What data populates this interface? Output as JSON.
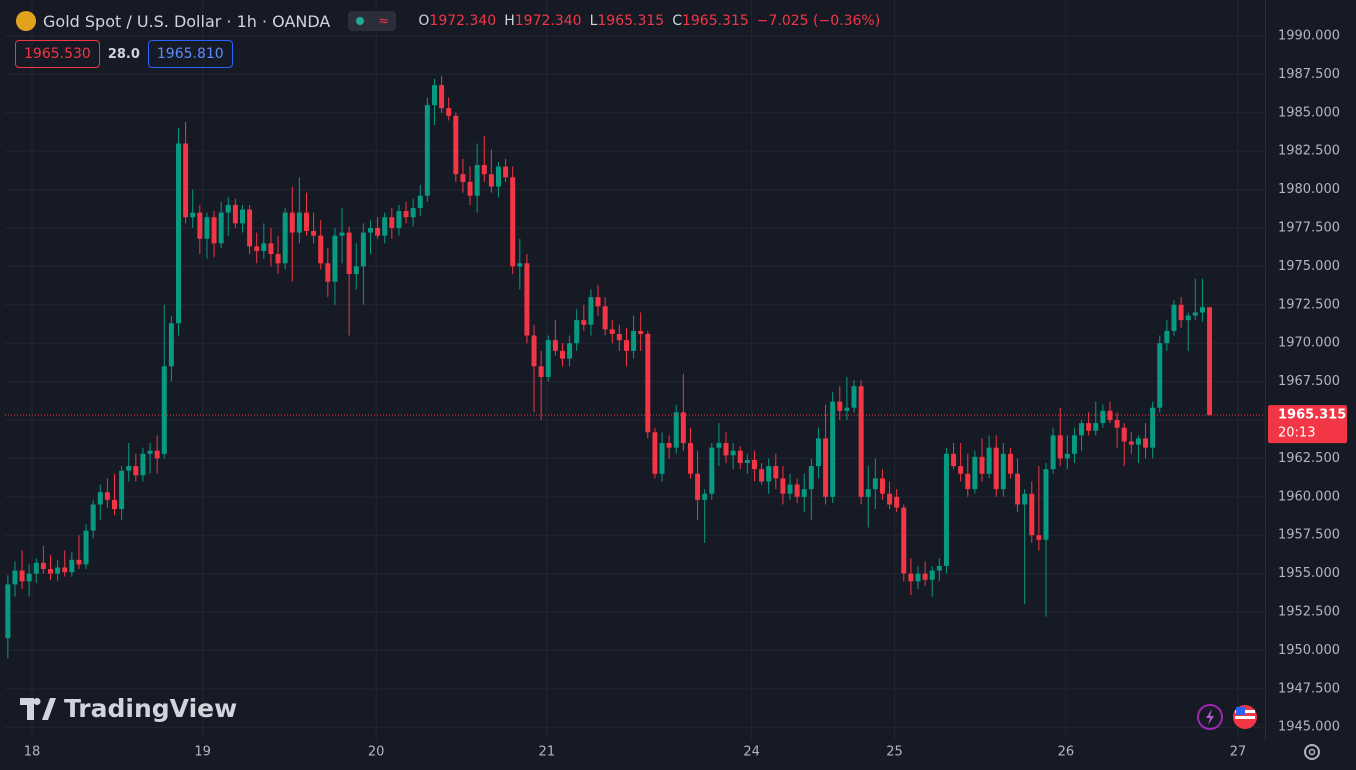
{
  "header": {
    "symbol": "Gold Spot / U.S. Dollar · 1h · OANDA",
    "open_label": "O",
    "open": "1972.340",
    "high_label": "H",
    "high": "1972.340",
    "low_label": "L",
    "low": "1965.315",
    "close_label": "C",
    "close": "1965.315",
    "change": "−7.025 (−0.36%)",
    "bid": "1965.530",
    "spread": "28.0",
    "ask": "1965.810",
    "countdown": "20:13",
    "logo": "TradingView"
  },
  "chart_data": {
    "type": "candlestick",
    "up_color": "#089981",
    "down_color": "#f23645",
    "grid": true,
    "xlim": [
      -0.4,
      176.8
    ],
    "ylim": [
      1944.17,
      1992.34
    ],
    "xticks": [
      {
        "value": 3.4,
        "label": "18"
      },
      {
        "value": 27.4,
        "label": "19"
      },
      {
        "value": 51.8,
        "label": "20"
      },
      {
        "value": 75.8,
        "label": "21"
      },
      {
        "value": 104.6,
        "label": "24"
      },
      {
        "value": 124.7,
        "label": "25"
      },
      {
        "value": 148.8,
        "label": "26"
      },
      {
        "value": 173,
        "label": "27"
      }
    ],
    "yticks": [
      {
        "value": 1945,
        "label": "1945.000"
      },
      {
        "value": 1947.5,
        "label": "1947.500"
      },
      {
        "value": 1950,
        "label": "1950.000"
      },
      {
        "value": 1952.5,
        "label": "1952.500"
      },
      {
        "value": 1955,
        "label": "1955.000"
      },
      {
        "value": 1957.5,
        "label": "1957.500"
      },
      {
        "value": 1960,
        "label": "1960.000"
      },
      {
        "value": 1962.5,
        "label": "1962.500"
      },
      {
        "value": 1965,
        "label": "1965.000"
      },
      {
        "value": 1967.5,
        "label": "1967.500"
      },
      {
        "value": 1970,
        "label": "1970.000"
      },
      {
        "value": 1972.5,
        "label": "1972.500"
      },
      {
        "value": 1975,
        "label": "1975.000"
      },
      {
        "value": 1977.5,
        "label": "1977.500"
      },
      {
        "value": 1980,
        "label": "1980.000"
      },
      {
        "value": 1982.5,
        "label": "1982.500"
      },
      {
        "value": 1985,
        "label": "1985.000"
      },
      {
        "value": 1987.5,
        "label": "1987.500"
      },
      {
        "value": 1990,
        "label": "1990.000"
      }
    ],
    "x": [
      0,
      1,
      2,
      3,
      4,
      5,
      6,
      7,
      8,
      9,
      10,
      11,
      12,
      13,
      14,
      15,
      16,
      17,
      18,
      19,
      20,
      21,
      22,
      23,
      24,
      25,
      26,
      27,
      28,
      29,
      30,
      31,
      32,
      33,
      34,
      35,
      36,
      37,
      38,
      39,
      40,
      41,
      42,
      43,
      44,
      45,
      46,
      47,
      48,
      49,
      50,
      51,
      52,
      53,
      54,
      55,
      56,
      57,
      58,
      59,
      60,
      61,
      62,
      63,
      64,
      65,
      66,
      67,
      68,
      69,
      70,
      71,
      72,
      73,
      74,
      75,
      76,
      77,
      78,
      79,
      80,
      81,
      82,
      83,
      84,
      85,
      86,
      87,
      88,
      89,
      90,
      91,
      92,
      93,
      94,
      95,
      96,
      97,
      98,
      99,
      100,
      101,
      102,
      103,
      104,
      105,
      106,
      107,
      108,
      109,
      110,
      111,
      112,
      113,
      114,
      115,
      116,
      117,
      118,
      119,
      120,
      121,
      122,
      123,
      124,
      125,
      126,
      127,
      128,
      129,
      130,
      131,
      132,
      133,
      134,
      135,
      136,
      137,
      138,
      139,
      140,
      141,
      142,
      143,
      144,
      145,
      146,
      147,
      148,
      149,
      150,
      151,
      152,
      153,
      154,
      155,
      156,
      157,
      158,
      159,
      160,
      161,
      162,
      163,
      164,
      165,
      166,
      167,
      168,
      169
    ],
    "open": [
      1950.8,
      1954.3,
      1955.2,
      1954.5,
      1955.0,
      1955.7,
      1955.3,
      1955.0,
      1955.4,
      1955.1,
      1955.9,
      1955.6,
      1957.8,
      1959.5,
      1960.3,
      1959.8,
      1959.2,
      1961.7,
      1962.0,
      1961.4,
      1962.8,
      1963.0,
      1962.8,
      1968.5,
      1971.3,
      1983.0,
      1978.2,
      1978.5,
      1976.8,
      1978.2,
      1976.5,
      1978.5,
      1979.0,
      1977.8,
      1978.7,
      1976.3,
      1976.0,
      1976.5,
      1975.8,
      1975.2,
      1978.5,
      1977.2,
      1978.5,
      1977.3,
      1977.0,
      1975.2,
      1974.0,
      1977.0,
      1977.2,
      1974.5,
      1975.0,
      1977.2,
      1977.5,
      1977.0,
      1978.2,
      1977.5,
      1978.6,
      1978.2,
      1978.8,
      1979.6,
      1985.5,
      1986.8,
      1985.3,
      1984.8,
      1981.0,
      1980.5,
      1979.6,
      1981.6,
      1981.0,
      1980.2,
      1981.5,
      1980.8,
      1975.0,
      1975.2,
      1970.5,
      1968.5,
      1967.8,
      1970.2,
      1969.5,
      1969.0,
      1970.0,
      1971.5,
      1971.2,
      1973.0,
      1972.4,
      1970.9,
      1970.6,
      1970.2,
      1969.5,
      1970.8,
      1970.6,
      1964.2,
      1961.5,
      1963.5,
      1963.2,
      1965.5,
      1963.5,
      1961.5,
      1959.8,
      1960.2,
      1963.2,
      1963.5,
      1962.7,
      1963.0,
      1962.2,
      1962.4,
      1961.8,
      1961.0,
      1962.0,
      1961.2,
      1960.2,
      1960.8,
      1960.0,
      1960.5,
      1962.0,
      1963.8,
      1960.0,
      1966.2,
      1965.6,
      1965.8,
      1967.2,
      1960.0,
      1960.5,
      1961.2,
      1960.2,
      1960.0,
      1959.3,
      1955.0,
      1954.5,
      1955.0,
      1954.6,
      1955.2,
      1955.5,
      1962.8,
      1962.0,
      1961.5,
      1960.5,
      1962.6,
      1961.5,
      1963.2,
      1960.5,
      1962.8,
      1961.5,
      1959.5,
      1960.2,
      1957.5,
      1957.2,
      1961.8,
      1964.0,
      1962.5,
      1962.8,
      1964.0,
      1964.8,
      1964.3,
      1964.8,
      1965.6,
      1965.0,
      1964.5,
      1963.6,
      1963.4,
      1963.8,
      1963.2,
      1965.8,
      1970.0,
      1970.8,
      1972.5,
      1971.5,
      1971.8,
      1972.0,
      1972.34
    ],
    "high": [
      1954.9,
      1955.8,
      1956.5,
      1955.6,
      1956.0,
      1956.8,
      1956.2,
      1955.9,
      1956.5,
      1956.4,
      1957.5,
      1958.2,
      1959.8,
      1960.8,
      1961.2,
      1961.5,
      1962.0,
      1963.5,
      1962.8,
      1963.2,
      1963.5,
      1964.0,
      1972.5,
      1971.8,
      1984.0,
      1984.4,
      1980.0,
      1979.0,
      1978.5,
      1978.6,
      1979.2,
      1979.5,
      1979.4,
      1979.0,
      1979.0,
      1977.2,
      1977.8,
      1977.5,
      1977.0,
      1978.8,
      1980.2,
      1980.8,
      1979.8,
      1978.5,
      1978.0,
      1976.2,
      1977.5,
      1978.8,
      1977.6,
      1976.5,
      1977.8,
      1978.0,
      1978.2,
      1978.5,
      1978.8,
      1979.0,
      1979.2,
      1979.4,
      1980.3,
      1986.0,
      1987.2,
      1987.4,
      1986.0,
      1985.0,
      1982.0,
      1981.5,
      1983.0,
      1983.5,
      1982.6,
      1981.8,
      1982.0,
      1981.5,
      1976.8,
      1975.8,
      1971.2,
      1969.5,
      1970.5,
      1971.5,
      1970.0,
      1970.5,
      1972.2,
      1972.5,
      1973.5,
      1973.8,
      1973.0,
      1971.5,
      1971.2,
      1971.0,
      1971.8,
      1972.0,
      1970.8,
      1964.5,
      1964.2,
      1964.0,
      1966.0,
      1968.0,
      1964.5,
      1963.0,
      1960.5,
      1963.5,
      1964.8,
      1964.2,
      1963.5,
      1963.3,
      1962.8,
      1963.0,
      1962.2,
      1962.5,
      1962.8,
      1962.0,
      1961.5,
      1961.2,
      1961.5,
      1962.5,
      1964.5,
      1966.0,
      1966.8,
      1967.2,
      1967.8,
      1967.6,
      1967.6,
      1962.0,
      1962.5,
      1961.8,
      1961.0,
      1960.5,
      1959.5,
      1956.0,
      1955.5,
      1955.8,
      1955.5,
      1956.0,
      1963.2,
      1963.5,
      1963.5,
      1962.8,
      1963.0,
      1963.8,
      1964.0,
      1964.0,
      1963.5,
      1963.2,
      1962.5,
      1960.5,
      1961.0,
      1962.0,
      1962.2,
      1964.5,
      1965.8,
      1964.0,
      1964.5,
      1965.0,
      1965.5,
      1966.2,
      1966.0,
      1966.2,
      1965.5,
      1964.8,
      1964.2,
      1964.0,
      1964.8,
      1966.2,
      1970.5,
      1971.5,
      1972.8,
      1973.0,
      1972.0,
      1974.2,
      1974.2,
      1972.34
    ],
    "low": [
      1949.5,
      1953.5,
      1954.0,
      1953.5,
      1954.4,
      1955.0,
      1954.6,
      1954.5,
      1954.8,
      1954.8,
      1955.3,
      1955.3,
      1957.3,
      1958.5,
      1959.3,
      1958.8,
      1958.5,
      1961.0,
      1961.0,
      1961.0,
      1961.5,
      1961.5,
      1962.5,
      1967.5,
      1970.5,
      1977.8,
      1977.5,
      1975.8,
      1975.5,
      1975.6,
      1976.2,
      1977.0,
      1977.5,
      1977.2,
      1975.8,
      1975.2,
      1975.5,
      1975.0,
      1974.5,
      1974.8,
      1974.0,
      1976.5,
      1977.0,
      1976.5,
      1974.8,
      1973.0,
      1972.5,
      1975.2,
      1970.5,
      1973.5,
      1972.5,
      1975.8,
      1976.8,
      1976.5,
      1976.8,
      1977.0,
      1977.8,
      1977.6,
      1978.3,
      1979.2,
      1984.2,
      1985.0,
      1984.5,
      1980.5,
      1979.8,
      1979.0,
      1978.5,
      1980.5,
      1979.8,
      1979.5,
      1980.5,
      1974.5,
      1973.5,
      1970.0,
      1965.5,
      1965.0,
      1967.5,
      1969.2,
      1968.5,
      1968.5,
      1969.5,
      1970.8,
      1970.5,
      1971.8,
      1970.5,
      1970.0,
      1969.5,
      1968.5,
      1969.0,
      1969.5,
      1963.8,
      1961.2,
      1961.0,
      1962.5,
      1962.8,
      1963.0,
      1961.2,
      1958.5,
      1957.0,
      1959.8,
      1962.0,
      1962.2,
      1961.8,
      1961.8,
      1961.5,
      1961.0,
      1960.8,
      1960.2,
      1960.5,
      1959.5,
      1959.8,
      1959.6,
      1959.0,
      1958.5,
      1961.2,
      1959.5,
      1959.6,
      1965.0,
      1965.0,
      1965.5,
      1959.5,
      1958.0,
      1959.2,
      1959.8,
      1959.2,
      1959.0,
      1954.5,
      1953.6,
      1954.0,
      1954.2,
      1953.5,
      1954.5,
      1955.0,
      1961.8,
      1961.0,
      1960.0,
      1960.2,
      1961.0,
      1961.2,
      1960.0,
      1960.0,
      1961.2,
      1959.0,
      1953.0,
      1957.0,
      1956.5,
      1952.2,
      1961.5,
      1962.0,
      1961.8,
      1962.2,
      1963.0,
      1964.0,
      1964.0,
      1964.5,
      1964.8,
      1963.2,
      1962.0,
      1962.8,
      1962.2,
      1962.5,
      1962.5,
      1965.5,
      1969.5,
      1970.5,
      1971.0,
      1969.5,
      1971.5,
      1971.4,
      1965.315
    ],
    "close": [
      1954.3,
      1955.2,
      1954.5,
      1955.0,
      1955.7,
      1955.3,
      1955.0,
      1955.4,
      1955.1,
      1955.9,
      1955.6,
      1957.8,
      1959.5,
      1960.3,
      1959.8,
      1959.2,
      1961.7,
      1962.0,
      1961.4,
      1962.8,
      1963.0,
      1962.5,
      1968.5,
      1971.3,
      1983.0,
      1978.2,
      1978.5,
      1976.8,
      1978.2,
      1976.5,
      1978.5,
      1979.0,
      1977.8,
      1978.7,
      1976.3,
      1976.0,
      1976.5,
      1975.8,
      1975.2,
      1978.5,
      1977.2,
      1978.5,
      1977.3,
      1977.0,
      1975.2,
      1974.0,
      1977.0,
      1977.2,
      1974.5,
      1975.0,
      1977.2,
      1977.5,
      1977.0,
      1978.2,
      1977.5,
      1978.6,
      1978.2,
      1978.8,
      1979.6,
      1985.5,
      1986.8,
      1985.3,
      1984.8,
      1981.0,
      1980.5,
      1979.6,
      1981.6,
      1981.0,
      1980.2,
      1981.5,
      1980.8,
      1975.0,
      1975.2,
      1970.5,
      1968.5,
      1967.8,
      1970.2,
      1969.5,
      1969.0,
      1970.0,
      1971.5,
      1971.2,
      1973.0,
      1972.4,
      1970.9,
      1970.6,
      1970.2,
      1969.5,
      1970.8,
      1970.6,
      1964.2,
      1961.5,
      1963.5,
      1963.2,
      1965.5,
      1963.5,
      1961.5,
      1959.8,
      1960.2,
      1963.2,
      1963.5,
      1962.7,
      1963.0,
      1962.2,
      1962.4,
      1961.8,
      1961.0,
      1962.0,
      1961.2,
      1960.2,
      1960.8,
      1960.0,
      1960.5,
      1962.0,
      1963.8,
      1960.0,
      1966.2,
      1965.6,
      1965.8,
      1967.2,
      1960.0,
      1960.5,
      1961.2,
      1960.2,
      1959.5,
      1959.3,
      1955.0,
      1954.5,
      1955.0,
      1954.6,
      1955.2,
      1955.5,
      1962.8,
      1962.0,
      1961.5,
      1960.5,
      1962.6,
      1961.5,
      1963.2,
      1960.5,
      1962.8,
      1961.5,
      1959.5,
      1960.2,
      1957.5,
      1957.2,
      1961.8,
      1964.0,
      1962.5,
      1962.8,
      1964.0,
      1964.8,
      1964.3,
      1964.8,
      1965.6,
      1965.0,
      1964.5,
      1963.6,
      1963.4,
      1963.8,
      1963.2,
      1965.8,
      1970.0,
      1970.8,
      1972.5,
      1971.5,
      1971.8,
      1972.0,
      1972.34,
      1965.315
    ]
  }
}
